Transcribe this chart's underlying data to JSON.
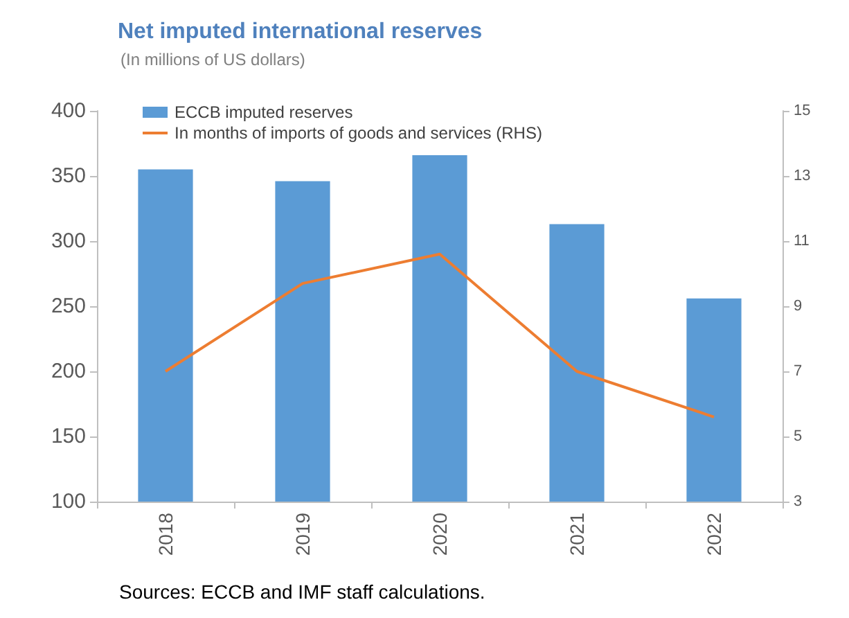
{
  "chart_data": {
    "type": "bar",
    "title": "Net imputed international reserves",
    "subtitle": "(In millions of US dollars)",
    "categories": [
      "2018",
      "2019",
      "2020",
      "2021",
      "2022"
    ],
    "series": [
      {
        "name": "ECCB imputed reserves",
        "color": "#5b9bd5",
        "values": [
          355,
          346,
          366,
          313,
          256
        ]
      },
      {
        "name": "In months of imports of goods and services (RHS)",
        "type": "line",
        "axis": "y2",
        "color": "#ed7d31",
        "values": [
          7.0,
          9.7,
          10.6,
          7.0,
          5.6
        ]
      }
    ],
    "ylim": [
      100,
      400
    ],
    "yticks": [
      100,
      150,
      200,
      250,
      300,
      350,
      400
    ],
    "y2lim": [
      3,
      15
    ],
    "y2ticks": [
      3,
      5,
      7,
      9,
      11,
      13,
      15
    ],
    "legend": "top left",
    "grid": false,
    "marker": "none",
    "annotations": [
      "Sources: ECCB and IMF staff calculations."
    ]
  }
}
